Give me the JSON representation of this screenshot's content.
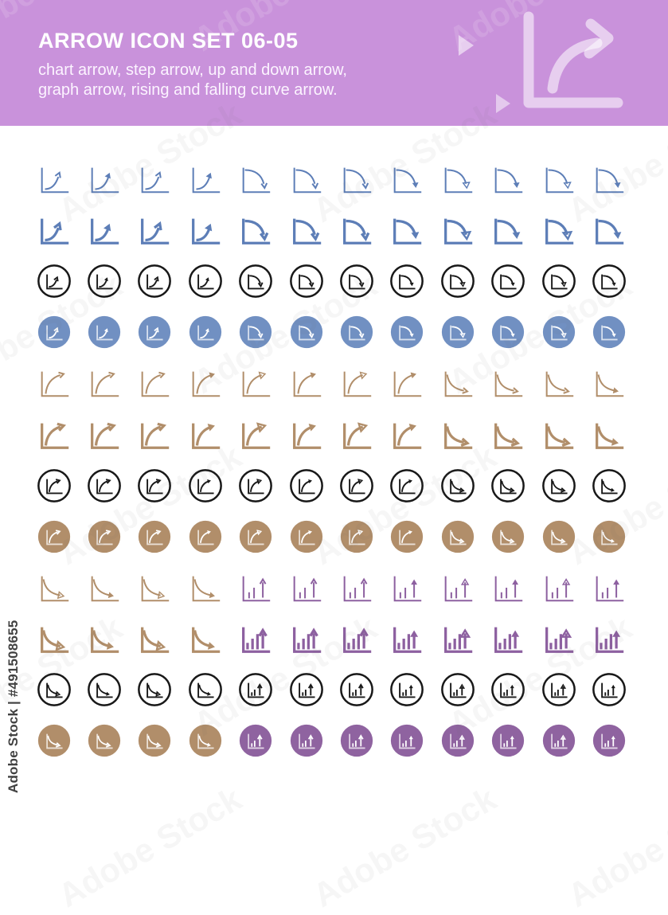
{
  "header": {
    "title": "ARROW ICON SET 06-05",
    "subtitle_line1": "chart arrow, step arrow, up and down arrow,",
    "subtitle_line2": "graph arrow, rising and falling curve arrow.",
    "background": "#c992db",
    "decor_color": "rgba(255,255,255,0.55)"
  },
  "watermark": {
    "side_text": "Adobe Stock | #491508655",
    "tile_text": "Adobe Stock"
  },
  "palette": {
    "blue": "#5d7eb7",
    "blue_fill": "#7190c2",
    "brown": "#b18e6a",
    "brown_fill": "#b18e6a",
    "purple": "#8d60a0",
    "purple_fill": "#8f63a0",
    "black": "#181818",
    "white": "#ffffff"
  },
  "glyph_names": {
    "rise": "chart-rising-arrow",
    "rise2": "graph-rising-arrow",
    "fall": "chart-falling-arrow",
    "fall2": "graph-falling-arrow",
    "bars": "bar-chart-rising-arrow"
  },
  "grid": {
    "columns": 12,
    "rows": [
      {
        "name": "blue-outline-thin",
        "style": "plain",
        "weight": "thin",
        "color": "blue",
        "cells": [
          "rise:open",
          "rise:filled",
          "rise:open",
          "rise:filled",
          "fall:open",
          "fall:open",
          "fall:open",
          "fall:filled",
          "fall:tri-open",
          "fall:tri-filled",
          "fall:tri-open",
          "fall:tri-filled"
        ]
      },
      {
        "name": "blue-outline-bold",
        "style": "plain",
        "weight": "bold",
        "color": "blue",
        "cells": [
          "rise:open",
          "rise:filled",
          "rise:open",
          "rise:filled",
          "fall:open",
          "fall:open",
          "fall:open",
          "fall:filled",
          "fall:tri-open",
          "fall:tri-filled",
          "fall:tri-open",
          "fall:tri-filled"
        ]
      },
      {
        "name": "black-circle-outline-1",
        "style": "circle",
        "weight": "thin",
        "color": "black",
        "cells": [
          "rise:open",
          "rise:filled",
          "rise:open",
          "rise:filled",
          "fall:open",
          "fall:open",
          "fall:open",
          "fall:filled",
          "fall:tri-open",
          "fall:tri-filled",
          "fall:tri-open",
          "fall:tri-filled"
        ]
      },
      {
        "name": "blue-circle-filled",
        "style": "circle-filled",
        "weight": "thin",
        "color": "blue_fill",
        "cells": [
          "rise:open",
          "rise:filled",
          "rise:open",
          "rise:filled",
          "fall:open",
          "fall:open",
          "fall:open",
          "fall:filled",
          "fall:tri-open",
          "fall:tri-filled",
          "fall:tri-open",
          "fall:tri-filled"
        ]
      },
      {
        "name": "brown-outline-thin",
        "style": "plain",
        "weight": "thin",
        "color": "brown",
        "cells": [
          "rise2:open",
          "rise2:open",
          "rise2:open",
          "rise2:filled",
          "rise2:tri-open",
          "rise2:filled",
          "rise2:tri-open",
          "rise2:filled",
          "fall2:open",
          "fall2:open",
          "fall2:open",
          "fall2:filled"
        ]
      },
      {
        "name": "brown-outline-bold",
        "style": "plain",
        "weight": "bold",
        "color": "brown",
        "cells": [
          "rise2:open",
          "rise2:open",
          "rise2:open",
          "rise2:filled",
          "rise2:tri-open",
          "rise2:filled",
          "rise2:tri-open",
          "rise2:filled",
          "fall2:open",
          "fall2:open",
          "fall2:open",
          "fall2:filled"
        ]
      },
      {
        "name": "black-circle-outline-2",
        "style": "circle",
        "weight": "thin",
        "color": "black",
        "cells": [
          "rise2:open",
          "rise2:open",
          "rise2:open",
          "rise2:filled",
          "rise2:tri-open",
          "rise2:filled",
          "rise2:tri-open",
          "rise2:filled",
          "fall2:open",
          "fall2:open",
          "fall2:open",
          "fall2:filled"
        ]
      },
      {
        "name": "brown-circle-filled",
        "style": "circle-filled",
        "weight": "thin",
        "color": "brown_fill",
        "cells": [
          "rise2:open",
          "rise2:open",
          "rise2:open",
          "rise2:filled",
          "rise2:tri-open",
          "rise2:filled",
          "rise2:tri-open",
          "rise2:filled",
          "fall2:open",
          "fall2:open",
          "fall2:open",
          "fall2:filled"
        ]
      },
      {
        "name": "mixed-outline-thin",
        "style": "plain",
        "weight": "thin",
        "color": "brown",
        "cells": [
          "fall2:tri-open:brown",
          "fall2:filled:brown",
          "fall2:tri-open:brown",
          "fall2:tri-filled:brown",
          "bars:open:purple",
          "bars:open:purple",
          "bars:open:purple",
          "bars:filled:purple",
          "bars:tri-open:purple",
          "bars:tri-filled:purple",
          "bars:tri-open:purple",
          "bars:tri-filled:purple"
        ]
      },
      {
        "name": "mixed-outline-bold",
        "style": "plain",
        "weight": "bold",
        "color": "brown",
        "cells": [
          "fall2:tri-open:brown",
          "fall2:filled:brown",
          "fall2:tri-open:brown",
          "fall2:tri-filled:brown",
          "bars:open:purple",
          "bars:open:purple",
          "bars:open:purple",
          "bars:filled:purple",
          "bars:tri-open:purple",
          "bars:tri-filled:purple",
          "bars:tri-open:purple",
          "bars:tri-filled:purple"
        ]
      },
      {
        "name": "black-circle-outline-3",
        "style": "circle",
        "weight": "thin",
        "color": "black",
        "cells": [
          "fall2:tri-open",
          "fall2:filled",
          "fall2:tri-open",
          "fall2:tri-filled",
          "bars:open",
          "bars:open",
          "bars:open",
          "bars:filled",
          "bars:tri-open",
          "bars:tri-filled",
          "bars:tri-open",
          "bars:tri-filled"
        ]
      },
      {
        "name": "mixed-circle-filled",
        "style": "circle-filled",
        "weight": "thin",
        "color": "purple_fill",
        "cells": [
          "fall2:open:brown_fill",
          "fall2:open:brown_fill",
          "fall2:open:brown_fill",
          "fall2:filled:brown_fill",
          "bars:open:purple_fill",
          "bars:open:purple_fill",
          "bars:open:purple_fill",
          "bars:filled:purple_fill",
          "bars:tri-open:purple_fill",
          "bars:filled:purple_fill",
          "bars:tri-open:purple_fill",
          "bars:filled:purple_fill"
        ]
      }
    ]
  }
}
